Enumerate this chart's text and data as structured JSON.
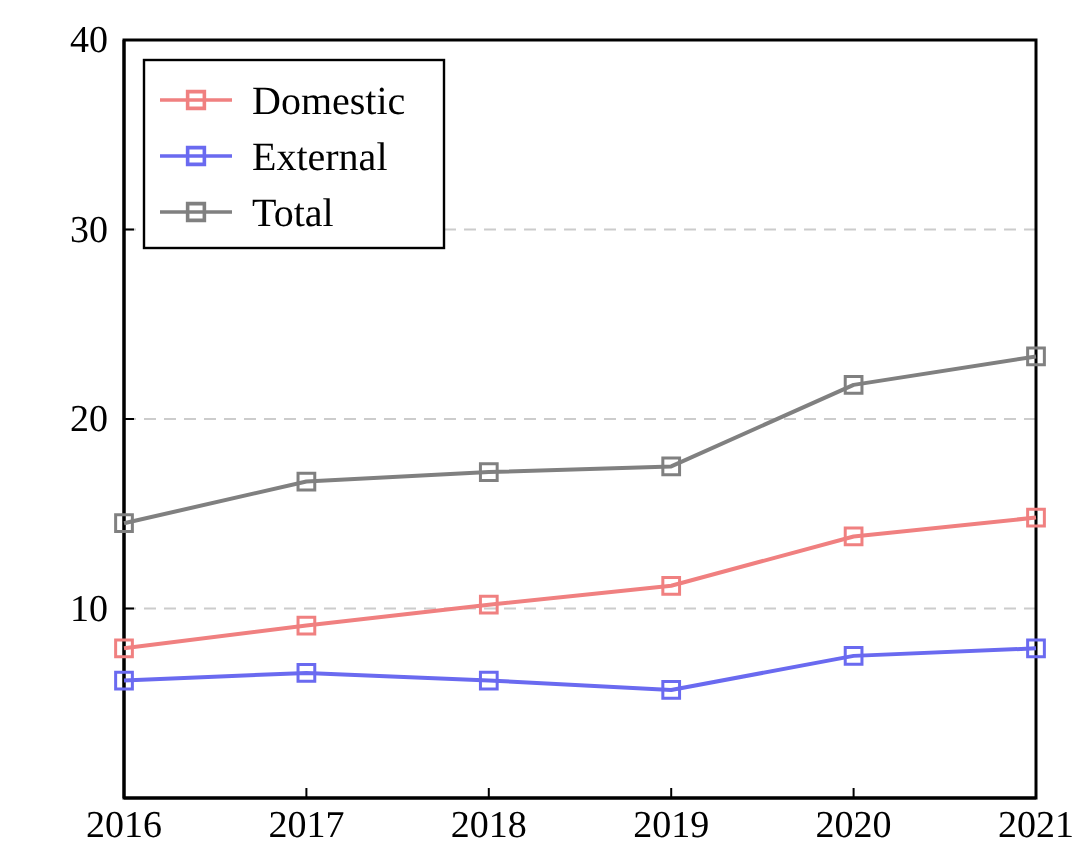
{
  "chart_data": {
    "type": "line",
    "x": [
      2016,
      2017,
      2018,
      2019,
      2020,
      2021
    ],
    "xlim": [
      2016,
      2021
    ],
    "xticks": [
      2016,
      2017,
      2018,
      2019,
      2020,
      2021
    ],
    "ylim": [
      0,
      40
    ],
    "yticks": [
      10,
      20,
      30,
      40
    ],
    "grid": "y",
    "legend": "top left",
    "marker": "square",
    "line_style": "solid",
    "series": [
      {
        "name": "Domestic",
        "color": "#f08080",
        "values": [
          7.9,
          9.1,
          10.2,
          11.2,
          13.8,
          14.8
        ]
      },
      {
        "name": "External",
        "color": "#6a6af0",
        "values": [
          6.2,
          6.6,
          6.2,
          5.7,
          7.5,
          7.9
        ]
      },
      {
        "name": "Total",
        "color": "#808080",
        "values": [
          14.5,
          16.7,
          17.2,
          17.5,
          21.8,
          23.3
        ]
      }
    ]
  }
}
